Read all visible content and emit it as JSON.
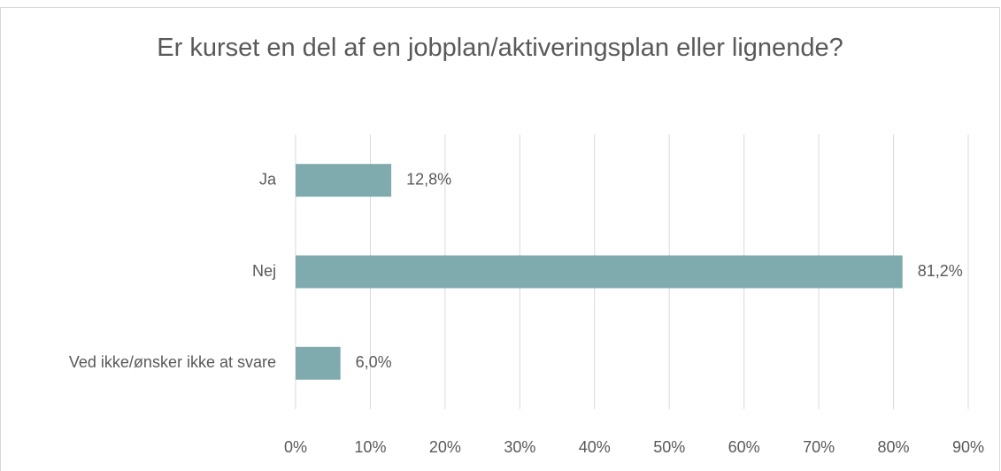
{
  "chart_data": {
    "type": "bar",
    "orientation": "horizontal",
    "title": "Er kurset en del af en jobplan/aktiveringsplan eller lignende?",
    "categories": [
      "Ja",
      "Nej",
      "Ved ikke/ønsker ikke at svare"
    ],
    "values": [
      12.8,
      81.2,
      6.0
    ],
    "value_labels": [
      "12,8%",
      "81,2%",
      "6,0%"
    ],
    "color": "#7faaae",
    "xlim": [
      0,
      90
    ],
    "xticks": [
      {
        "value": 0,
        "label": "0%"
      },
      {
        "value": 10,
        "label": "10%"
      },
      {
        "value": 20,
        "label": "20%"
      },
      {
        "value": 30,
        "label": "30%"
      },
      {
        "value": 40,
        "label": "40%"
      },
      {
        "value": 50,
        "label": "50%"
      },
      {
        "value": 60,
        "label": "60%"
      },
      {
        "value": 70,
        "label": "70%"
      },
      {
        "value": 80,
        "label": "80%"
      },
      {
        "value": 90,
        "label": "90%"
      }
    ],
    "grid": true
  }
}
